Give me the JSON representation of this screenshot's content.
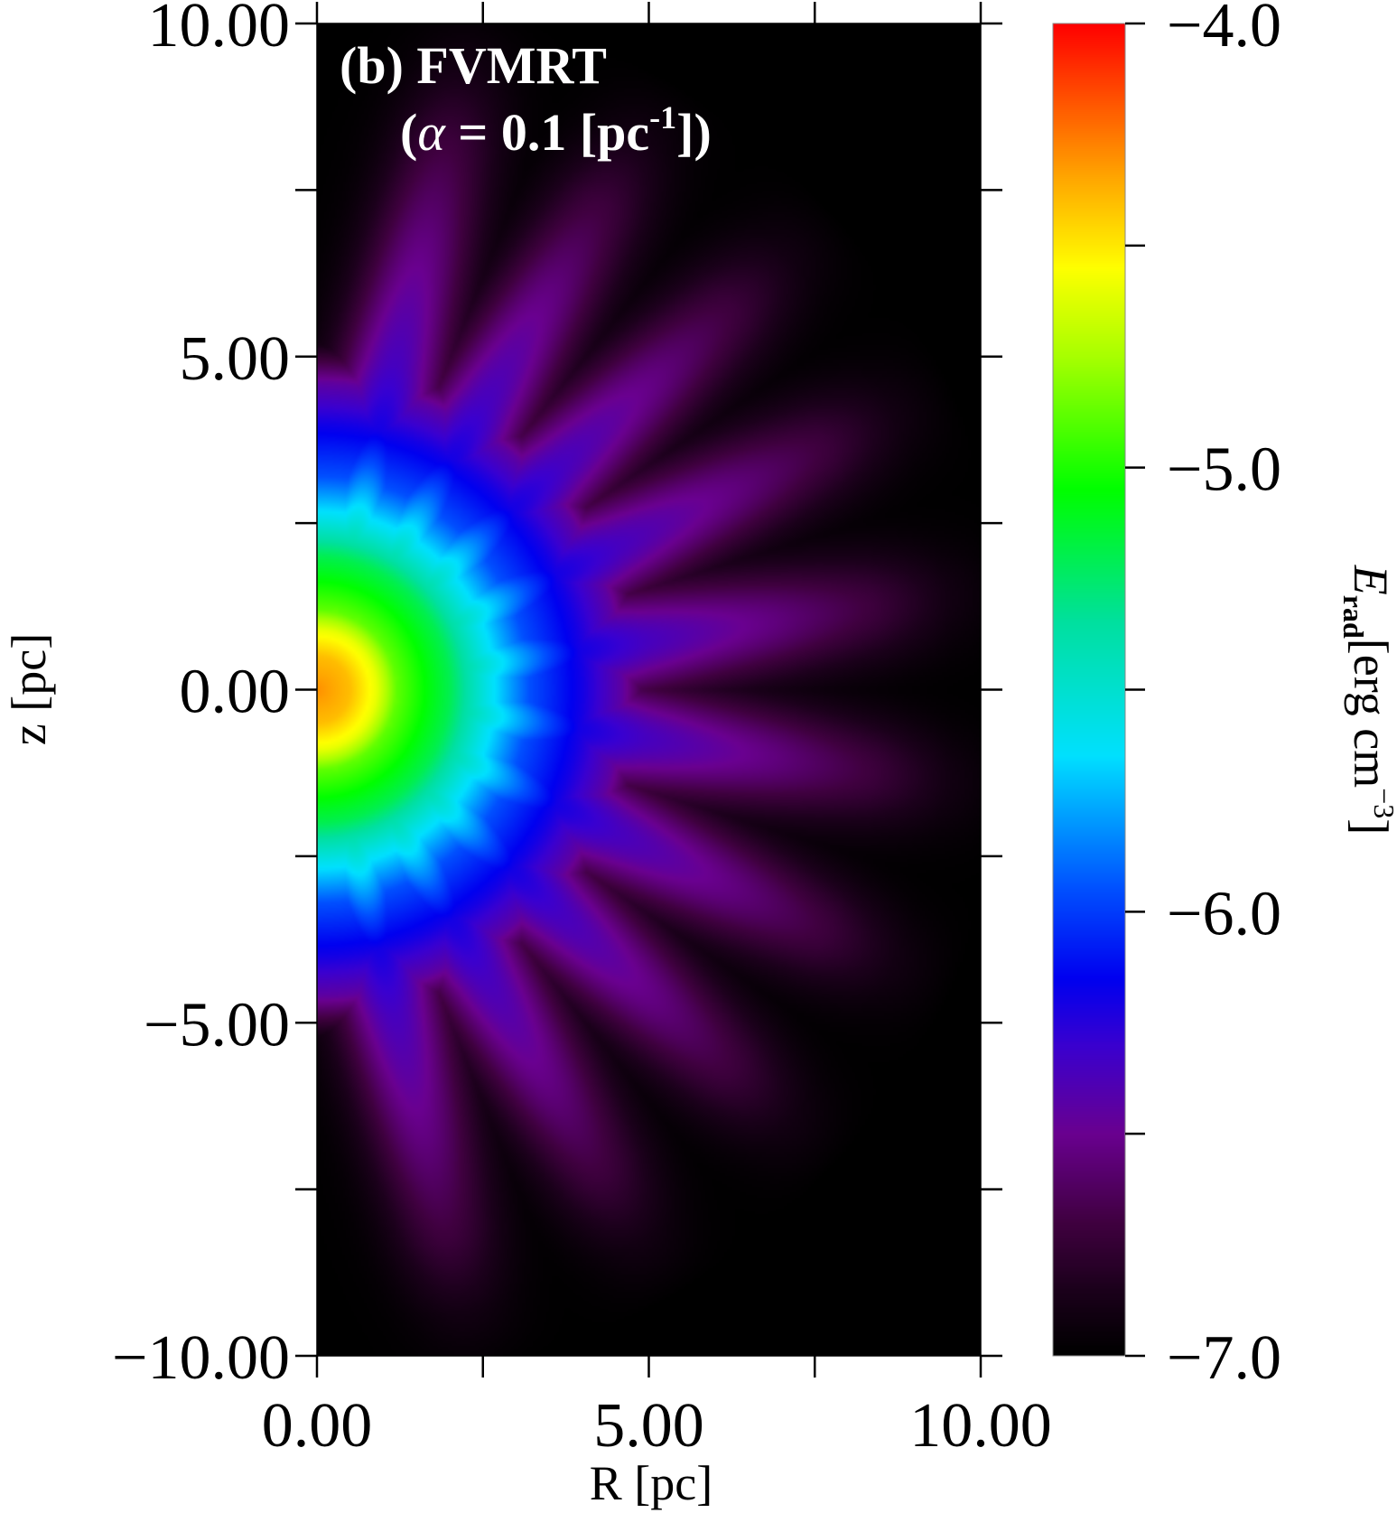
{
  "chart_data": {
    "type": "heatmap",
    "annotation": {
      "line1": "(b) FVMRT",
      "line2_open": "(",
      "line2_alpha": "α",
      "line2_mid": " = 0.1 [pc",
      "line2_sup": "-1",
      "line2_close": "])"
    },
    "xlabel": "R [pc]",
    "ylabel": "z [pc]",
    "xlim": [
      0,
      10
    ],
    "ylim": [
      -10,
      10
    ],
    "xticks": {
      "values": [
        0,
        5,
        10
      ],
      "labels": [
        "0.00",
        "5.00",
        "10.00"
      ],
      "minor": [
        2.5,
        7.5
      ]
    },
    "yticks": {
      "values": [
        10,
        5,
        0,
        -5,
        -10
      ],
      "labels": [
        "10.00",
        "5.00",
        "0.00",
        "−5.00",
        "−10.00"
      ],
      "minor": [
        7.5,
        2.5,
        -2.5,
        -7.5
      ]
    },
    "grid": false,
    "colorbar": {
      "label_symbol": "E",
      "label_sub": "rad",
      "label_unit": "[erg cm",
      "label_sup": "−3",
      "label_close": "]",
      "range": [
        -7,
        -4
      ],
      "ticks": {
        "values": [
          -4,
          -5,
          -6,
          -7
        ],
        "labels": [
          "−4.0",
          "−5.0",
          "−6.0",
          "−7.0"
        ],
        "minor": [
          -4.5,
          -5.5,
          -6.5
        ]
      },
      "colormap": [
        [
          -7.0,
          "#000000"
        ],
        [
          -6.85,
          "#1c001c"
        ],
        [
          -6.7,
          "#400040"
        ],
        [
          -6.5,
          "#6a0090"
        ],
        [
          -6.3,
          "#3a00d0"
        ],
        [
          -6.15,
          "#0000f0"
        ],
        [
          -5.95,
          "#0050ff"
        ],
        [
          -5.65,
          "#00e0ff"
        ],
        [
          -5.35,
          "#00e0a0"
        ],
        [
          -5.05,
          "#00ff00"
        ],
        [
          -4.75,
          "#a8ff00"
        ],
        [
          -4.55,
          "#ffff00"
        ],
        [
          -4.35,
          "#ffa800"
        ],
        [
          -4.0,
          "#ff0000"
        ]
      ]
    },
    "field": {
      "radial_profile": [
        [
          0,
          -4.3
        ],
        [
          0.5,
          -4.4
        ],
        [
          0.9,
          -4.6
        ],
        [
          1.2,
          -4.88
        ],
        [
          2.0,
          -5.2
        ],
        [
          2.6,
          -5.6
        ],
        [
          3.2,
          -5.95
        ],
        [
          4.0,
          -6.2
        ],
        [
          4.6,
          -6.45
        ],
        [
          5.2,
          -6.9
        ],
        [
          6.0,
          -7.0
        ]
      ],
      "ray_profile": [
        [
          0,
          -4.3
        ],
        [
          4.0,
          -6.2
        ],
        [
          5.0,
          -6.35
        ],
        [
          7.0,
          -6.55
        ],
        [
          8.5,
          -6.72
        ],
        [
          9.6,
          -6.9
        ],
        [
          10.6,
          -7.0
        ]
      ],
      "ray_angles_deg": [
        -76.5,
        -59.5,
        -42.5,
        -25.5,
        -8.5,
        8.5,
        25.5,
        42.5,
        59.5,
        76.5
      ]
    }
  }
}
